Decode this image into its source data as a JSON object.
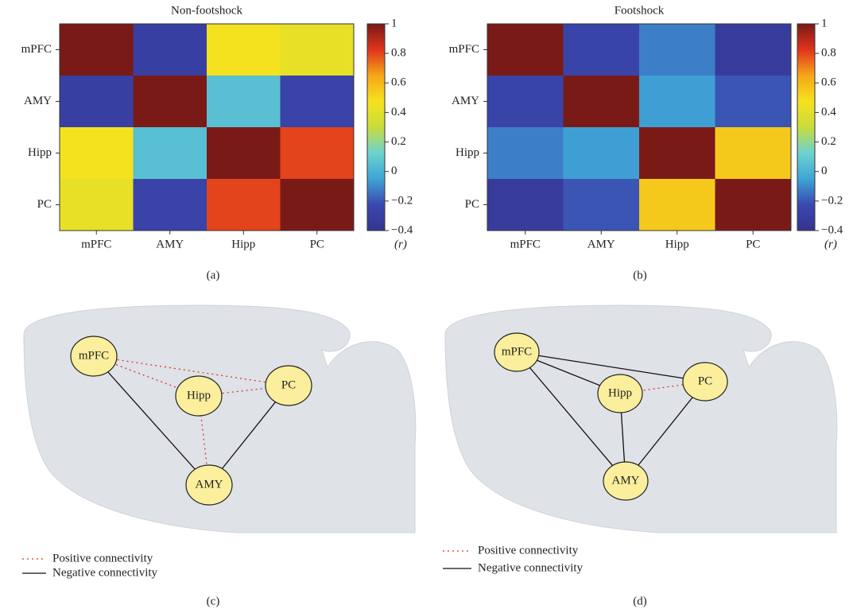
{
  "chart_data": [
    {
      "type": "heatmap",
      "title": "Non-footshock",
      "x_categories": [
        "mPFC",
        "AMY",
        "Hipp",
        "PC"
      ],
      "y_categories": [
        "mPFC",
        "AMY",
        "Hipp",
        "PC"
      ],
      "values": [
        [
          1,
          -0.3,
          0.47,
          0.42
        ],
        [
          -0.3,
          1,
          0.05,
          -0.27
        ],
        [
          0.47,
          0.05,
          1,
          0.8
        ],
        [
          0.42,
          -0.27,
          0.8,
          1
        ]
      ],
      "zlim": [
        -0.4,
        1
      ],
      "zticks": [
        {
          "value": -0.4,
          "label": "−0.4"
        },
        {
          "value": -0.2,
          "label": "−0.2"
        },
        0,
        0.2,
        0.4,
        0.6,
        0.8,
        1
      ],
      "colorbar_label": "(r)",
      "colormap": [
        "#35348f",
        "#3a48b0",
        "#3fa4d6",
        "#6cd3cf",
        "#c8dc3c",
        "#f5e21e",
        "#f6a61a",
        "#e0341c",
        "#7a1a17"
      ],
      "panel_label": "(a)"
    },
    {
      "type": "heatmap",
      "title": "Footshock",
      "x_categories": [
        "mPFC",
        "AMY",
        "Hipp",
        "PC"
      ],
      "y_categories": [
        "mPFC",
        "AMY",
        "Hipp",
        "PC"
      ],
      "values": [
        [
          1,
          -0.26,
          -0.12,
          -0.33
        ],
        [
          -0.26,
          1,
          -0.06,
          -0.2
        ],
        [
          -0.12,
          -0.06,
          1,
          0.55
        ],
        [
          -0.33,
          -0.2,
          0.55,
          1
        ]
      ],
      "zlim": [
        -0.4,
        1
      ],
      "zticks": [
        {
          "value": -0.4,
          "label": "−0.4"
        },
        {
          "value": -0.2,
          "label": "−0.2"
        },
        0,
        0.2,
        0.4,
        0.6,
        0.8,
        1
      ],
      "colorbar_label": "(r)",
      "colormap": [
        "#35348f",
        "#3a48b0",
        "#3fa4d6",
        "#6cd3cf",
        "#c8dc3c",
        "#f5e21e",
        "#f6a61a",
        "#e0341c",
        "#7a1a17"
      ],
      "panel_label": "(b)"
    }
  ],
  "diagrams": [
    {
      "nodes": [
        {
          "label": "mPFC"
        },
        {
          "label": "Hipp"
        },
        {
          "label": "PC"
        },
        {
          "label": "AMY"
        }
      ],
      "edges": [
        {
          "from": 0,
          "to": 2,
          "kind": 0
        },
        {
          "from": 0,
          "to": 1,
          "kind": 0
        },
        {
          "from": 1,
          "to": 2,
          "kind": 0
        },
        {
          "from": 1,
          "to": 3,
          "kind": 0
        },
        {
          "from": 0,
          "to": 3,
          "kind": 1
        },
        {
          "from": 2,
          "to": 3,
          "kind": 1
        }
      ],
      "legend": [
        {
          "label": "Positive connectivity",
          "style": "dotted",
          "color": "#e0342c"
        },
        {
          "label": "Negative connectivity",
          "style": "solid",
          "color": "#111111"
        }
      ],
      "panel_label": "(c)"
    },
    {
      "nodes": [
        {
          "label": "mPFC"
        },
        {
          "label": "Hipp"
        },
        {
          "label": "PC"
        },
        {
          "label": "AMY"
        }
      ],
      "edges": [
        {
          "from": 0,
          "to": 2,
          "kind": 1
        },
        {
          "from": 0,
          "to": 1,
          "kind": 1
        },
        {
          "from": 0,
          "to": 3,
          "kind": 1
        },
        {
          "from": 1,
          "to": 3,
          "kind": 1
        },
        {
          "from": 2,
          "to": 3,
          "kind": 1
        },
        {
          "from": 1,
          "to": 2,
          "kind": 0
        }
      ],
      "legend": [
        {
          "label": "Positive connectivity",
          "style": "dotted",
          "color": "#e0342c"
        },
        {
          "label": "Negative connectivity",
          "style": "solid",
          "color": "#111111"
        }
      ],
      "panel_label": "(d)"
    }
  ]
}
